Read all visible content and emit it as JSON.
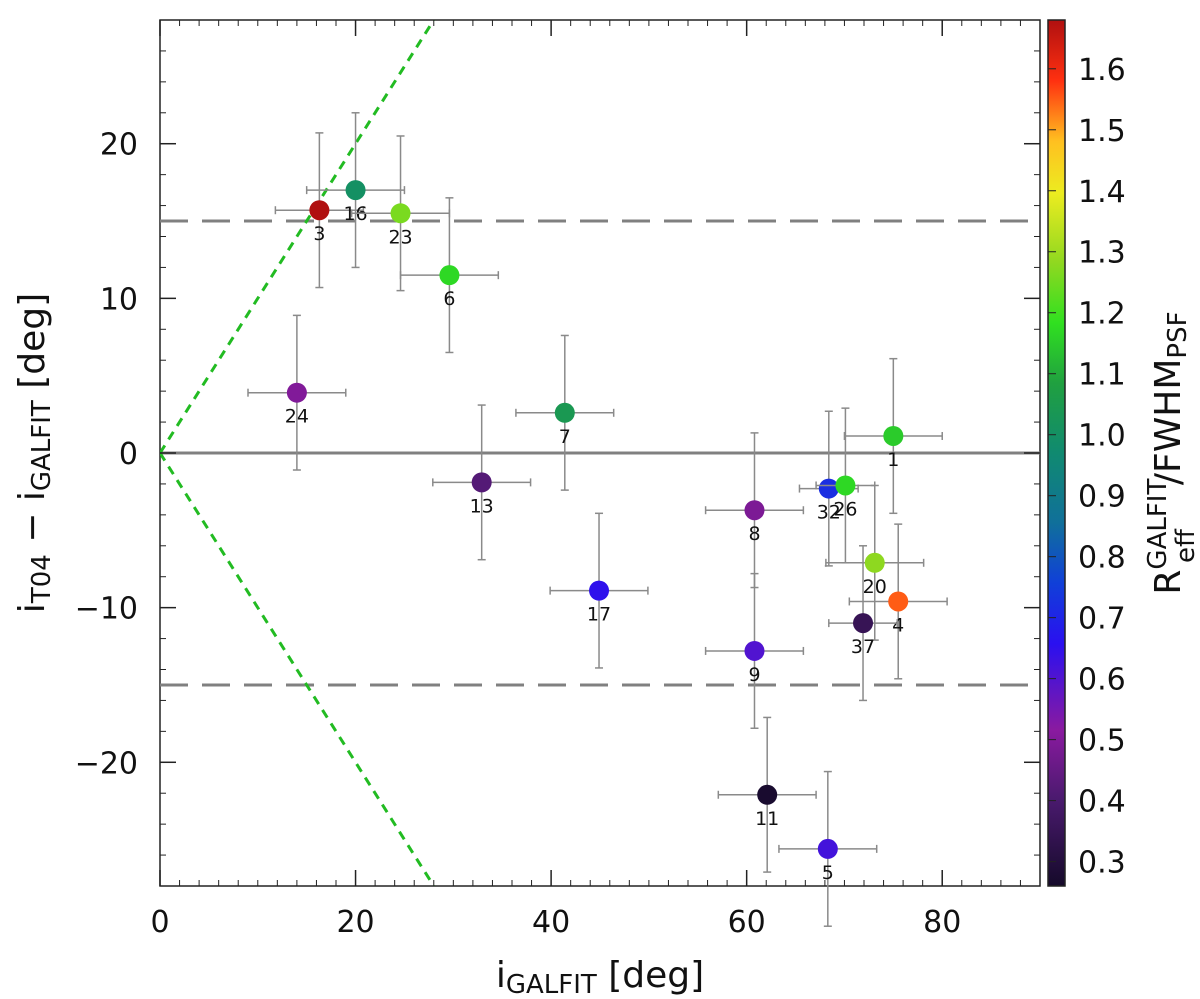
{
  "chart_data": {
    "type": "scatter",
    "title": "",
    "xlabel": {
      "main": "i",
      "sub": "GALFIT",
      "unit": " [deg]"
    },
    "ylabel": {
      "main1": "i",
      "sub1": "T04",
      "minus": " − ",
      "main2": "i",
      "sub2": "GALFIT",
      "unit": " [deg]"
    },
    "colorbar_label": {
      "main": "R",
      "sup": "GALFIT",
      "sub": "eff",
      "slash": "/FWHM",
      "sub2": "PSF"
    },
    "xlim": [
      0,
      90
    ],
    "ylim": [
      -28,
      28
    ],
    "xticks": [
      "0",
      "20",
      "40",
      "60",
      "80"
    ],
    "yticks": [
      "−20",
      "−10",
      "0",
      "10",
      "20"
    ],
    "colorbar": {
      "range": [
        0.26,
        1.68
      ],
      "ticks": [
        "0.3",
        "0.4",
        "0.5",
        "0.6",
        "0.7",
        "0.8",
        "0.9",
        "1.0",
        "1.1",
        "1.2",
        "1.3",
        "1.4",
        "1.5",
        "1.6"
      ]
    },
    "reference_lines": {
      "solid_y": 0,
      "dashed_y": [
        15,
        -15
      ],
      "dotted_diagonals": "y = ±x"
    },
    "points": [
      {
        "label": "3",
        "x": 16.3,
        "y": 15.7,
        "xerr": 4.5,
        "yerr": 5,
        "color": 1.68
      },
      {
        "label": "16",
        "x": 20.0,
        "y": 17.0,
        "xerr": 5,
        "yerr": 5,
        "color": 1.0
      },
      {
        "label": "23",
        "x": 24.6,
        "y": 15.5,
        "xerr": 5,
        "yerr": 5,
        "color": 1.26
      },
      {
        "label": "6",
        "x": 29.6,
        "y": 11.5,
        "xerr": 5,
        "yerr": 5,
        "color": 1.17
      },
      {
        "label": "24",
        "x": 14.0,
        "y": 3.9,
        "xerr": 5,
        "yerr": 5,
        "color": 0.5
      },
      {
        "label": "7",
        "x": 41.4,
        "y": 2.6,
        "xerr": 5,
        "yerr": 5,
        "color": 1.04
      },
      {
        "label": "13",
        "x": 32.9,
        "y": -1.9,
        "xerr": 5,
        "yerr": 5,
        "color": 0.42
      },
      {
        "label": "17",
        "x": 44.9,
        "y": -8.9,
        "xerr": 5,
        "yerr": 5,
        "color": 0.65
      },
      {
        "label": "8",
        "x": 60.8,
        "y": -3.7,
        "xerr": 5,
        "yerr": 5,
        "color": 0.49
      },
      {
        "label": "9",
        "x": 60.8,
        "y": -12.8,
        "xerr": 5,
        "yerr": 5,
        "color": 0.6
      },
      {
        "label": "11",
        "x": 62.1,
        "y": -22.1,
        "xerr": 5,
        "yerr": 5,
        "color": 0.27
      },
      {
        "label": "5",
        "x": 68.3,
        "y": -25.6,
        "xerr": 5,
        "yerr": 5,
        "color": 0.62
      },
      {
        "label": "32",
        "x": 68.4,
        "y": -2.3,
        "xerr": 3,
        "yerr": 5,
        "color": 0.72
      },
      {
        "label": "26",
        "x": 70.1,
        "y": -2.1,
        "xerr": 3,
        "yerr": 5,
        "color": 1.17
      },
      {
        "label": "20",
        "x": 73.1,
        "y": -7.1,
        "xerr": 5,
        "yerr": 5,
        "color": 1.28
      },
      {
        "label": "1",
        "x": 75.0,
        "y": 1.1,
        "xerr": 5,
        "yerr": 5,
        "color": 1.15
      },
      {
        "label": "4",
        "x": 75.5,
        "y": -9.6,
        "xerr": 5,
        "yerr": 5,
        "color": 1.55
      },
      {
        "label": "37",
        "x": 71.9,
        "y": -11.0,
        "xerr": 3.5,
        "yerr": 5,
        "color": 0.35
      }
    ]
  }
}
